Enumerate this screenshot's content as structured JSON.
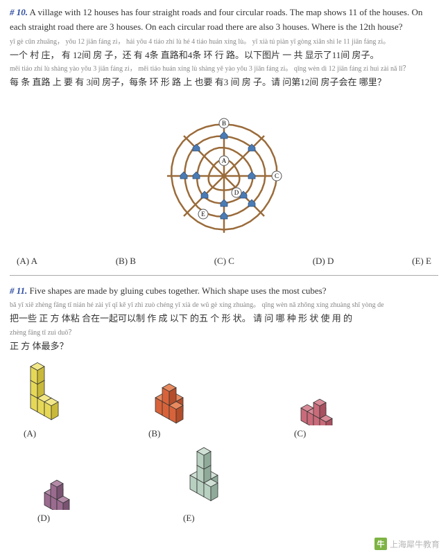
{
  "q10": {
    "num": "# 10.",
    "eng": "A village with 12 houses has four straight roads and four circular roads. The map shows 11 of the houses. On each straight road there are 3 houses. On each circular road there are also 3 houses. Where is the 12th house?",
    "pinyin1": "yī gè cūn zhuāng， yǒu 12 jiān fáng zi， hái yǒu 4 tiáo zhí lù hé 4 tiáo huán xíng lù。 yǐ xià tú piàn yī gòng xiǎn shì le 11 jiān fáng zi。",
    "chinese1": "一个 村 庄， 有 12间 房 子，还 有 4条 直路和4条 环 行 路。以下图片 一 共 显示了11间 房子。",
    "pinyin2": "měi tiáo zhí lù shàng yào yǒu 3 jiān fáng zi， měi tiáo huán xíng lù shàng yě yào yǒu 3 jiān fáng zi。 qǐng wèn dì 12 jiān fáng zi huì zài nǎ lǐ？",
    "chinese2": "每 条 直路 上 要 有 3间 房子，每条 环 形 路 上 也要 有3 间 房 子。请 问第12间 房子会在 哪里？",
    "options": [
      "(A) A",
      "(B) B",
      "(C) C",
      "(D) D",
      "(E) E"
    ],
    "diagram": {
      "ring_color": "#9a6b3a",
      "line_color": "#9a6b3a",
      "house_fill": "#4a7bb5",
      "house_stroke": "#2d4a70",
      "label_fill": "#ffffff",
      "label_stroke": "#555",
      "rings": [
        22,
        40,
        58,
        76
      ],
      "labels": {
        "A": [
          0,
          -22
        ],
        "B": [
          0,
          -76
        ],
        "C": [
          76,
          0
        ],
        "D": [
          18,
          24
        ],
        "E": [
          -30,
          55
        ]
      }
    }
  },
  "q11": {
    "num": "# 11.",
    "eng": "Five shapes are made by gluing cubes together. Which shape uses the most cubes?",
    "pinyin1": "bǎ yī xiē zhèng fāng tǐ nián hé zài yī qǐ kě yǐ zhì zuò chéng yǐ xià de wǔ gè xíng zhuàng。 qǐng wèn nǎ zhǒng xíng zhuàng shǐ yòng de",
    "chinese1": "把一些 正 方 体粘 合在一起可以制 作 成 以下 的五 个 形 状。 请 问 哪 种 形 状 使 用 的",
    "pinyin2": "zhèng fāng tǐ zuì duō？",
    "chinese2": "正    方 体最多？",
    "shapes": {
      "A": {
        "fill": "#e6d857",
        "dark": "#c9b93a",
        "light": "#f2e88a"
      },
      "B": {
        "fill": "#d8633a",
        "dark": "#b34d2a",
        "light": "#e88a5f"
      },
      "C": {
        "fill": "#c96b7a",
        "dark": "#a8505f",
        "light": "#d98a97"
      },
      "D": {
        "fill": "#9a6b8f",
        "dark": "#7a5272",
        "light": "#b38aa8"
      },
      "E": {
        "fill": "#b8d0c0",
        "dark": "#8faa99",
        "light": "#d0e0d5"
      }
    },
    "labels": [
      "(A)",
      "(B)",
      "(C)",
      "(D)",
      "(E)"
    ]
  },
  "watermark": "上海犀牛教育"
}
